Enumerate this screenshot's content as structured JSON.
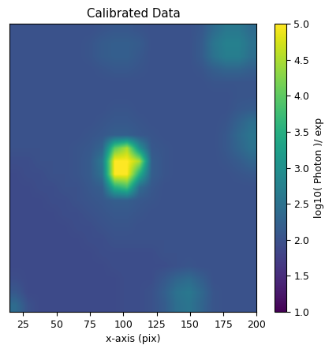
{
  "chart_data": {
    "type": "heatmap",
    "title": "Calibrated Data",
    "x_label": "x-axis (pix)",
    "xlim": [
      15,
      200
    ],
    "ylim": [
      0,
      214
    ],
    "xticks": [
      25,
      50,
      75,
      100,
      125,
      150,
      175,
      200
    ],
    "tick_labels": "x",
    "cells": [
      [
        2.0,
        2.0,
        2.0,
        2.0,
        2.0,
        2.0,
        2.0,
        2.05,
        2.1,
        2.1,
        2.05,
        2.0,
        2.0,
        2.0,
        2.0,
        2.1,
        2.4,
        2.6,
        2.6,
        2.4
      ],
      [
        2.0,
        2.0,
        2.0,
        2.0,
        2.0,
        2.0,
        2.05,
        2.15,
        2.2,
        2.2,
        2.15,
        2.0,
        2.0,
        2.0,
        2.0,
        2.15,
        2.55,
        2.75,
        2.75,
        2.5
      ],
      [
        2.0,
        2.0,
        2.0,
        2.0,
        2.0,
        2.0,
        2.05,
        2.15,
        2.2,
        2.2,
        2.1,
        2.0,
        2.0,
        2.0,
        2.0,
        2.15,
        2.5,
        2.7,
        2.7,
        2.45
      ],
      [
        2.0,
        2.0,
        2.0,
        2.0,
        2.0,
        2.0,
        2.0,
        2.05,
        2.1,
        2.1,
        2.05,
        2.0,
        2.0,
        2.0,
        2.0,
        2.05,
        2.2,
        2.3,
        2.3,
        2.2
      ],
      [
        2.0,
        2.0,
        2.0,
        2.0,
        2.0,
        2.0,
        2.0,
        2.0,
        2.0,
        2.0,
        2.0,
        2.0,
        2.0,
        2.0,
        2.0,
        2.0,
        2.05,
        2.05,
        2.05,
        2.05
      ],
      [
        2.0,
        2.0,
        2.0,
        2.0,
        2.0,
        2.0,
        2.0,
        2.0,
        2.0,
        2.0,
        2.0,
        2.0,
        2.0,
        2.0,
        2.0,
        2.0,
        2.0,
        2.0,
        2.05,
        2.05
      ],
      [
        2.0,
        2.0,
        2.0,
        2.0,
        2.0,
        2.0,
        2.0,
        2.0,
        2.05,
        2.05,
        2.0,
        2.0,
        2.0,
        2.0,
        2.0,
        2.0,
        2.0,
        2.0,
        2.1,
        2.15
      ],
      [
        2.0,
        2.0,
        2.0,
        2.0,
        2.0,
        2.0,
        2.0,
        2.05,
        2.1,
        2.1,
        2.05,
        2.0,
        2.0,
        2.0,
        2.0,
        2.0,
        2.0,
        2.05,
        2.25,
        2.45
      ],
      [
        2.0,
        2.0,
        2.0,
        2.0,
        2.0,
        2.0,
        2.05,
        2.1,
        2.2,
        2.2,
        2.1,
        2.05,
        2.0,
        2.0,
        2.0,
        2.0,
        2.0,
        2.1,
        2.35,
        2.55
      ],
      [
        2.0,
        2.0,
        2.0,
        2.0,
        2.0,
        2.05,
        2.1,
        2.3,
        4.0,
        4.5,
        3.0,
        2.1,
        2.05,
        2.0,
        2.0,
        2.0,
        2.0,
        2.1,
        2.3,
        2.5
      ],
      [
        1.95,
        1.95,
        2.0,
        2.0,
        2.0,
        2.05,
        2.15,
        2.6,
        5.0,
        5.0,
        4.5,
        2.2,
        2.05,
        2.0,
        2.0,
        2.0,
        2.0,
        2.05,
        2.15,
        2.3
      ],
      [
        1.9,
        1.95,
        1.95,
        2.0,
        2.0,
        2.05,
        2.15,
        2.5,
        5.0,
        5.0,
        3.5,
        2.2,
        2.05,
        2.0,
        2.0,
        2.0,
        2.0,
        2.0,
        2.05,
        2.1
      ],
      [
        1.9,
        1.9,
        1.95,
        1.95,
        2.0,
        2.0,
        2.1,
        2.2,
        3.5,
        3.8,
        2.4,
        2.1,
        2.0,
        2.0,
        2.0,
        2.0,
        2.0,
        2.0,
        2.0,
        2.0
      ],
      [
        1.9,
        1.9,
        1.9,
        1.95,
        1.95,
        2.0,
        2.05,
        2.1,
        2.2,
        2.2,
        2.1,
        2.05,
        2.0,
        2.0,
        2.0,
        2.0,
        2.0,
        2.0,
        2.0,
        2.0
      ],
      [
        1.9,
        1.9,
        1.9,
        1.9,
        1.95,
        1.95,
        2.0,
        2.05,
        2.1,
        2.1,
        2.05,
        2.0,
        2.0,
        2.0,
        2.0,
        2.0,
        2.0,
        2.0,
        2.0,
        2.0
      ],
      [
        1.9,
        1.9,
        1.9,
        1.9,
        1.9,
        1.95,
        1.95,
        2.0,
        2.05,
        2.05,
        2.0,
        2.0,
        2.0,
        2.0,
        2.0,
        2.0,
        2.0,
        2.0,
        2.0,
        2.0
      ],
      [
        1.9,
        1.9,
        1.9,
        1.9,
        1.9,
        1.9,
        1.95,
        1.95,
        2.0,
        2.0,
        2.0,
        2.0,
        2.0,
        2.0,
        2.0,
        2.0,
        2.0,
        2.0,
        2.0,
        2.0
      ],
      [
        1.9,
        1.9,
        1.9,
        1.9,
        1.9,
        1.9,
        1.9,
        1.95,
        1.95,
        1.95,
        1.95,
        1.95,
        2.0,
        2.0,
        2.0,
        2.0,
        2.0,
        2.0,
        2.0,
        2.0
      ],
      [
        1.9,
        1.9,
        1.9,
        1.9,
        1.9,
        1.9,
        1.9,
        1.9,
        1.95,
        1.95,
        1.95,
        1.95,
        1.95,
        2.0,
        2.05,
        2.0,
        2.0,
        2.0,
        2.0,
        2.0
      ],
      [
        1.95,
        1.9,
        1.9,
        1.9,
        1.9,
        1.9,
        1.9,
        1.9,
        1.9,
        1.95,
        1.95,
        1.95,
        2.1,
        2.3,
        2.4,
        2.2,
        2.0,
        2.0,
        2.0,
        2.0
      ],
      [
        2.1,
        1.9,
        1.9,
        1.9,
        1.9,
        1.9,
        1.9,
        1.9,
        1.9,
        1.95,
        1.95,
        2.0,
        2.2,
        2.5,
        2.6,
        2.35,
        2.05,
        2.0,
        2.0,
        2.0
      ],
      [
        2.4,
        2.0,
        1.9,
        1.9,
        1.9,
        1.9,
        1.9,
        1.9,
        1.9,
        1.95,
        1.95,
        2.0,
        2.15,
        2.45,
        2.55,
        2.3,
        2.05,
        2.0,
        2.0,
        2.0
      ]
    ],
    "colorbar": {
      "label": "log10( Photon )/ exp",
      "range": [
        1,
        5
      ],
      "ticks": [
        {
          "value": 1,
          "label": "1.0"
        },
        {
          "value": 1.5,
          "label": "1.5"
        },
        {
          "value": 2,
          "label": "2.0"
        },
        {
          "value": 2.5,
          "label": "2.5"
        },
        {
          "value": 3,
          "label": "3.0"
        },
        {
          "value": 3.5,
          "label": "3.5"
        },
        {
          "value": 4,
          "label": "4.0"
        },
        {
          "value": 4.5,
          "label": "4.5"
        },
        {
          "value": 5,
          "label": "5.0"
        }
      ]
    }
  }
}
